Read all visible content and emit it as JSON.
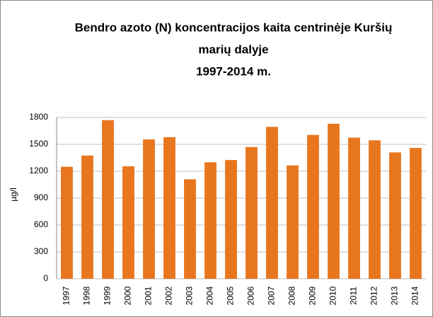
{
  "chart_data": {
    "type": "bar",
    "title": [
      "Bendro azoto (N) koncentracijos kaita centrinėje Kuršių",
      "marių dalyje",
      "1997-2014 m."
    ],
    "y_label": "µg/l",
    "categories": [
      "1997",
      "1998",
      "1999",
      "2000",
      "2001",
      "2002",
      "2003",
      "2004",
      "2005",
      "2006",
      "2007",
      "2008",
      "2009",
      "2010",
      "2011",
      "2012",
      "2013",
      "2014"
    ],
    "values": [
      1250,
      1375,
      1770,
      1255,
      1555,
      1580,
      1110,
      1300,
      1325,
      1470,
      1695,
      1265,
      1605,
      1730,
      1575,
      1545,
      1410,
      1460
    ],
    "color": "#e8761e",
    "ylim": [
      0,
      1800
    ],
    "yticks": [
      0,
      300,
      600,
      900,
      1200,
      1500,
      1800
    ],
    "grid": true
  }
}
